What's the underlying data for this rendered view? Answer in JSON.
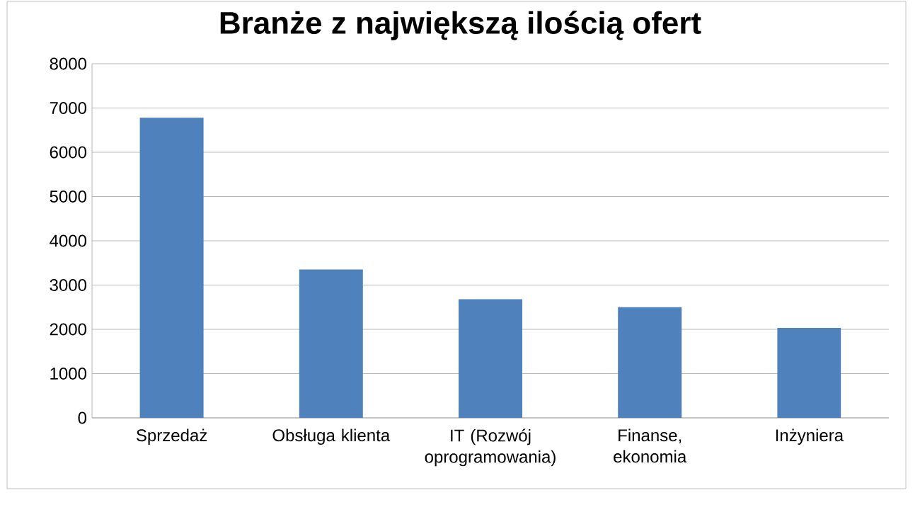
{
  "chart_data": {
    "type": "bar",
    "title": "Branże z największą ilością ofert",
    "categories": [
      "Sprzedaż",
      "Obsługa klienta",
      "IT (Rozwój oprogramowania)",
      "Finanse, ekonomia",
      "Inżyniera"
    ],
    "values": [
      6780,
      3350,
      2680,
      2500,
      2030
    ],
    "color": "#4f81bd",
    "ylim": [
      0,
      8000
    ],
    "yticks": [
      0,
      1000,
      2000,
      3000,
      4000,
      5000,
      6000,
      7000,
      8000
    ],
    "grid": "y"
  }
}
